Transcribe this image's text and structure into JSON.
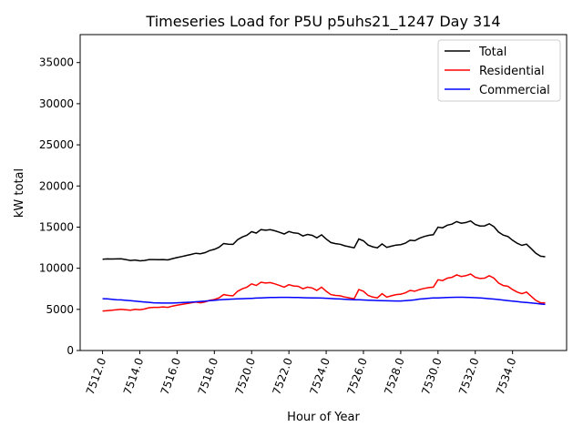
{
  "chart_data": {
    "type": "line",
    "title": "Timeseries Load for P5U p5uhs21_1247  Day 314",
    "xlabel": "Hour of Year",
    "ylabel": "kW total",
    "xlim": [
      7510.8,
      7536.9
    ],
    "ylim": [
      0,
      38400
    ],
    "grid": false,
    "legend_position": "top-right",
    "x_start": 7512,
    "x_step": 0.25,
    "xticks": [
      7512,
      7514,
      7516,
      7518,
      7520,
      7522,
      7524,
      7526,
      7528,
      7530,
      7532,
      7534
    ],
    "xtick_labels": [
      "7512.0",
      "7514.0",
      "7516.0",
      "7518.0",
      "7520.0",
      "7522.0",
      "7524.0",
      "7526.0",
      "7528.0",
      "7530.0",
      "7532.0",
      "7534.0"
    ],
    "yticks": [
      0,
      5000,
      10000,
      15000,
      20000,
      25000,
      30000,
      35000
    ],
    "ytick_labels": [
      "0",
      "5000",
      "10000",
      "15000",
      "20000",
      "25000",
      "30000",
      "35000"
    ],
    "series": [
      {
        "name": "Total",
        "color": "#000000",
        "values": [
          11100,
          11130,
          11120,
          11130,
          11150,
          11050,
          10950,
          11000,
          10900,
          10950,
          11050,
          11050,
          11030,
          11060,
          11010,
          11170,
          11300,
          11420,
          11550,
          11680,
          11820,
          11760,
          11900,
          12150,
          12300,
          12550,
          13000,
          12930,
          12900,
          13480,
          13800,
          14020,
          14440,
          14270,
          14700,
          14620,
          14690,
          14550,
          14360,
          14160,
          14460,
          14300,
          14240,
          13920,
          14110,
          14000,
          13690,
          14070,
          13550,
          13120,
          12990,
          12910,
          12730,
          12600,
          12480,
          13560,
          13340,
          12820,
          12600,
          12480,
          12960,
          12540,
          12680,
          12820,
          12870,
          13050,
          13400,
          13350,
          13650,
          13850,
          14000,
          14080,
          15000,
          14920,
          15240,
          15360,
          15670,
          15470,
          15560,
          15750,
          15320,
          15140,
          15150,
          15400,
          15050,
          14400,
          14030,
          13860,
          13400,
          13040,
          12780,
          12930,
          12380,
          11820,
          11460,
          11400
        ]
      },
      {
        "name": "Residential",
        "color": "#ff0000",
        "values": [
          4800,
          4850,
          4900,
          4950,
          5000,
          4950,
          4900,
          5000,
          4950,
          5050,
          5200,
          5250,
          5250,
          5300,
          5250,
          5400,
          5500,
          5600,
          5700,
          5800,
          5900,
          5800,
          5900,
          6100,
          6200,
          6400,
          6800,
          6700,
          6650,
          7200,
          7500,
          7700,
          8100,
          7900,
          8300,
          8200,
          8250,
          8100,
          7900,
          7700,
          8000,
          7850,
          7800,
          7500,
          7700,
          7600,
          7300,
          7700,
          7200,
          6800,
          6700,
          6650,
          6500,
          6400,
          6300,
          7400,
          7200,
          6700,
          6500,
          6400,
          6900,
          6500,
          6650,
          6800,
          6850,
          7000,
          7300,
          7200,
          7400,
          7550,
          7650,
          7700,
          8600,
          8500,
          8800,
          8900,
          9200,
          9000,
          9100,
          9300,
          8900,
          8750,
          8800,
          9100,
          8800,
          8200,
          7900,
          7800,
          7400,
          7100,
          6900,
          7100,
          6600,
          6100,
          5800,
          5800
        ]
      },
      {
        "name": "Commercial",
        "color": "#0000ff",
        "values": [
          6300,
          6280,
          6220,
          6180,
          6150,
          6100,
          6050,
          6000,
          5950,
          5900,
          5850,
          5800,
          5780,
          5760,
          5760,
          5770,
          5800,
          5820,
          5850,
          5880,
          5920,
          5960,
          6000,
          6050,
          6100,
          6150,
          6200,
          6230,
          6250,
          6280,
          6300,
          6320,
          6340,
          6370,
          6400,
          6420,
          6440,
          6450,
          6460,
          6460,
          6460,
          6450,
          6440,
          6420,
          6410,
          6400,
          6390,
          6370,
          6350,
          6320,
          6290,
          6260,
          6230,
          6200,
          6180,
          6160,
          6140,
          6120,
          6100,
          6080,
          6060,
          6040,
          6030,
          6020,
          6020,
          6050,
          6100,
          6150,
          6250,
          6300,
          6350,
          6380,
          6400,
          6420,
          6440,
          6460,
          6470,
          6470,
          6460,
          6450,
          6420,
          6390,
          6350,
          6300,
          6250,
          6200,
          6130,
          6060,
          6000,
          5940,
          5880,
          5830,
          5780,
          5720,
          5660,
          5600
        ]
      }
    ]
  }
}
